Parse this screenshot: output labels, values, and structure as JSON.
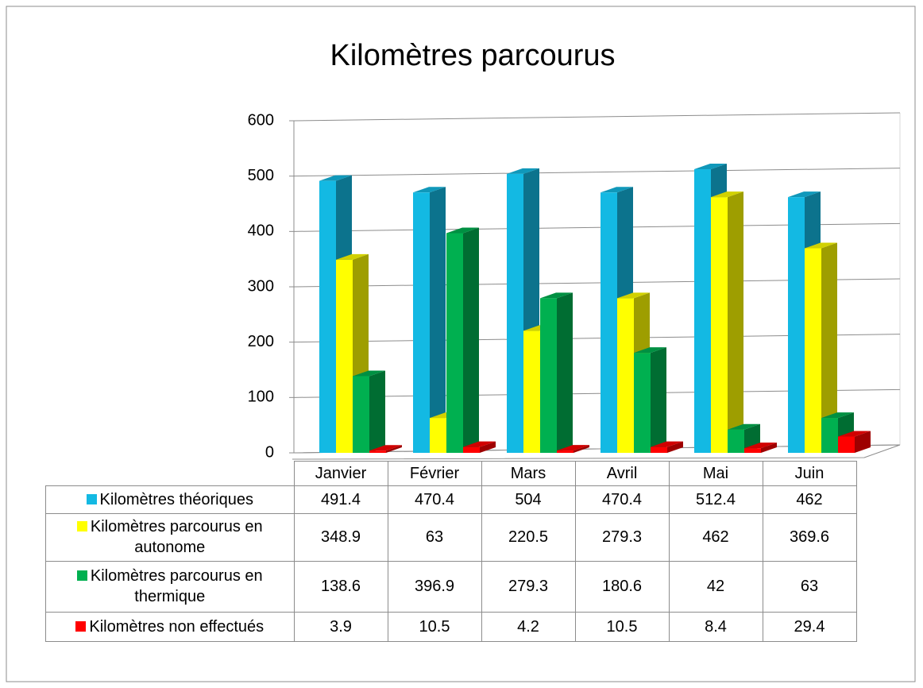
{
  "chart_data": {
    "type": "bar",
    "title": "Kilomètres parcourus",
    "categories": [
      "Janvier",
      "Février",
      "Mars",
      "Avril",
      "Mai",
      "Juin"
    ],
    "series": [
      {
        "name": "Kilomètres théoriques",
        "color": "#13b9e3",
        "values": [
          491.4,
          470.4,
          504,
          470.4,
          512.4,
          462
        ]
      },
      {
        "name": "Kilomètres parcourus en autonome",
        "color": "#ffff00",
        "values": [
          348.9,
          63,
          220.5,
          279.3,
          462,
          369.6
        ]
      },
      {
        "name": "Kilomètres parcourus en thermique",
        "color": "#00b050",
        "values": [
          138.6,
          396.9,
          279.3,
          180.6,
          42,
          63
        ]
      },
      {
        "name": "Kilomètres non effectués",
        "color": "#ff0000",
        "values": [
          3.9,
          10.5,
          4.2,
          10.5,
          8.4,
          29.4
        ]
      }
    ],
    "ylim": [
      0,
      600
    ],
    "yticks": [
      0,
      100,
      200,
      300,
      400,
      500,
      600
    ],
    "grid": true
  }
}
